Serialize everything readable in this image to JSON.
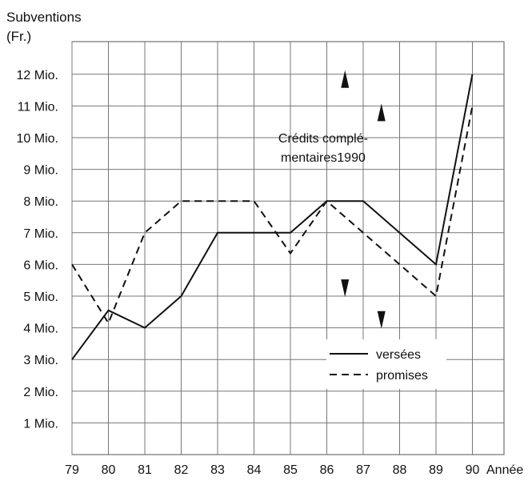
{
  "chart_data": {
    "type": "line",
    "ylabel": [
      "Subventions",
      "(Fr.)"
    ],
    "xlabel": "Année",
    "x": [
      79,
      80,
      81,
      82,
      83,
      84,
      85,
      86,
      87,
      88,
      89,
      90
    ],
    "x_tick_labels": [
      "79",
      "80",
      "81",
      "82",
      "83",
      "84",
      "85",
      "86",
      "87",
      "88",
      "89",
      "90"
    ],
    "y_tick_labels": [
      "1 Mio.",
      "2 Mio.",
      "3 Mio.",
      "4 Mio.",
      "5 Mio.",
      "6 Mio.",
      "7 Mio.",
      "8 Mio.",
      "9 Mio.",
      "10 Mio.",
      "11 Mio.",
      "12 Mio."
    ],
    "y_tick_values": [
      1,
      2,
      3,
      4,
      5,
      6,
      7,
      8,
      9,
      10,
      11,
      12
    ],
    "ylim": [
      0,
      13.8
    ],
    "xlim": [
      79,
      90.2
    ],
    "grid": true,
    "legend_position": "lower-right",
    "series": [
      {
        "name": "versées",
        "style": "solid",
        "points": [
          [
            79,
            3.0
          ],
          [
            80,
            4.55
          ],
          [
            81,
            4.0
          ],
          [
            82,
            5.0
          ],
          [
            83,
            7.0
          ],
          [
            84,
            7.0
          ],
          [
            85,
            7.0
          ],
          [
            86,
            8.0
          ],
          [
            87,
            8.0
          ],
          [
            89,
            6.0
          ],
          [
            90,
            12.0
          ]
        ]
      },
      {
        "name": "promises",
        "style": "dashed",
        "points": [
          [
            79,
            6.0
          ],
          [
            80,
            4.15
          ],
          [
            81,
            7.0
          ],
          [
            82,
            8.0
          ],
          [
            83,
            8.0
          ],
          [
            84,
            8.0
          ],
          [
            85,
            6.35
          ],
          [
            86,
            8.0
          ],
          [
            87,
            7.0
          ],
          [
            89,
            5.0
          ],
          [
            90,
            11.0
          ]
        ]
      }
    ],
    "annotation": {
      "lines": [
        "Crédits complé-",
        "mentaires1990"
      ],
      "x": 85.9,
      "y": 10.0
    },
    "markers": [
      {
        "x": 86.5,
        "y": 11.85,
        "dir": "up"
      },
      {
        "x": 87.5,
        "y": 10.8,
        "dir": "up"
      },
      {
        "x": 86.5,
        "y": 5.25,
        "dir": "down"
      },
      {
        "x": 87.5,
        "y": 4.25,
        "dir": "down"
      }
    ]
  }
}
